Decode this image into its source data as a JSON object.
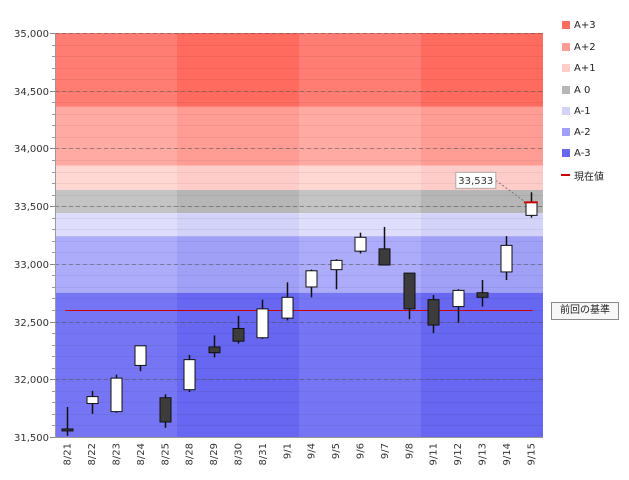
{
  "chart_data": {
    "type": "candlestick",
    "categories": [
      "8/21",
      "8/22",
      "8/23",
      "8/24",
      "8/25",
      "8/28",
      "8/29",
      "8/30",
      "8/31",
      "9/1",
      "9/4",
      "9/5",
      "9/6",
      "9/7",
      "9/8",
      "9/11",
      "9/12",
      "9/13",
      "9/14",
      "9/15"
    ],
    "open": [
      31570,
      31790,
      31720,
      32120,
      31840,
      31910,
      32280,
      32440,
      32360,
      32530,
      32800,
      32950,
      33110,
      33130,
      32920,
      32690,
      32630,
      32750,
      32930,
      33420
    ],
    "high": [
      31760,
      31900,
      32040,
      32290,
      31870,
      32210,
      32380,
      32550,
      32690,
      32840,
      32950,
      33040,
      33270,
      33320,
      32920,
      32730,
      32780,
      32860,
      33240,
      33620
    ],
    "low": [
      31510,
      31700,
      31710,
      32070,
      31580,
      31890,
      32190,
      32310,
      32350,
      32510,
      32710,
      32780,
      33090,
      32990,
      32520,
      32400,
      32490,
      32630,
      32860,
      33400
    ],
    "close": [
      31560,
      31850,
      32010,
      32290,
      31630,
      32170,
      32230,
      32330,
      32610,
      32710,
      32940,
      33030,
      33230,
      32990,
      32610,
      32470,
      32770,
      32710,
      33160,
      33533
    ],
    "up_color": "#ffffff",
    "down_color": "#3c3c3c",
    "ylim": [
      31500,
      35000
    ],
    "y_ticks": [
      {
        "value": 31500,
        "label": "31,500"
      },
      {
        "value": 32000,
        "label": "32,000"
      },
      {
        "value": 32500,
        "label": "32,500"
      },
      {
        "value": 33000,
        "label": "33,000"
      },
      {
        "value": 33500,
        "label": "33,500"
      },
      {
        "value": 34000,
        "label": "34,000"
      },
      {
        "value": 34500,
        "label": "34,500"
      },
      {
        "value": 35000,
        "label": "35,000"
      }
    ],
    "grid": true,
    "legend_position": "right",
    "bands": [
      {
        "name": "A+3",
        "range": [
          34360,
          35000
        ],
        "color_light": "#ff7d72",
        "color_dark": "#ff6b5e"
      },
      {
        "name": "A+2",
        "range": [
          33850,
          34360
        ],
        "color_light": "#ffaba4",
        "color_dark": "#ff9d95"
      },
      {
        "name": "A+1",
        "range": [
          33640,
          33850
        ],
        "color_light": "#ffd7d3",
        "color_dark": "#ffcdc9"
      },
      {
        "name": "A 0",
        "range": [
          33440,
          33640
        ],
        "color_light": "#c4c4c4",
        "color_dark": "#b6b6b6"
      },
      {
        "name": "A-1",
        "range": [
          33240,
          33440
        ],
        "color_light": "#dedefc",
        "color_dark": "#d3d3fa"
      },
      {
        "name": "A-2",
        "range": [
          32750,
          33240
        ],
        "color_light": "#acacfa",
        "color_dark": "#a0a0f7"
      },
      {
        "name": "A-3",
        "range": [
          31500,
          32750
        ],
        "color_light": "#7676f5",
        "color_dark": "#6767f2"
      }
    ],
    "reference_line": {
      "label": "前回の基準",
      "value": 32600,
      "color": "#cc0000"
    },
    "current_value": {
      "label": "33,533",
      "value": 33533,
      "legend": "現在値",
      "color": "#cc0000"
    }
  }
}
